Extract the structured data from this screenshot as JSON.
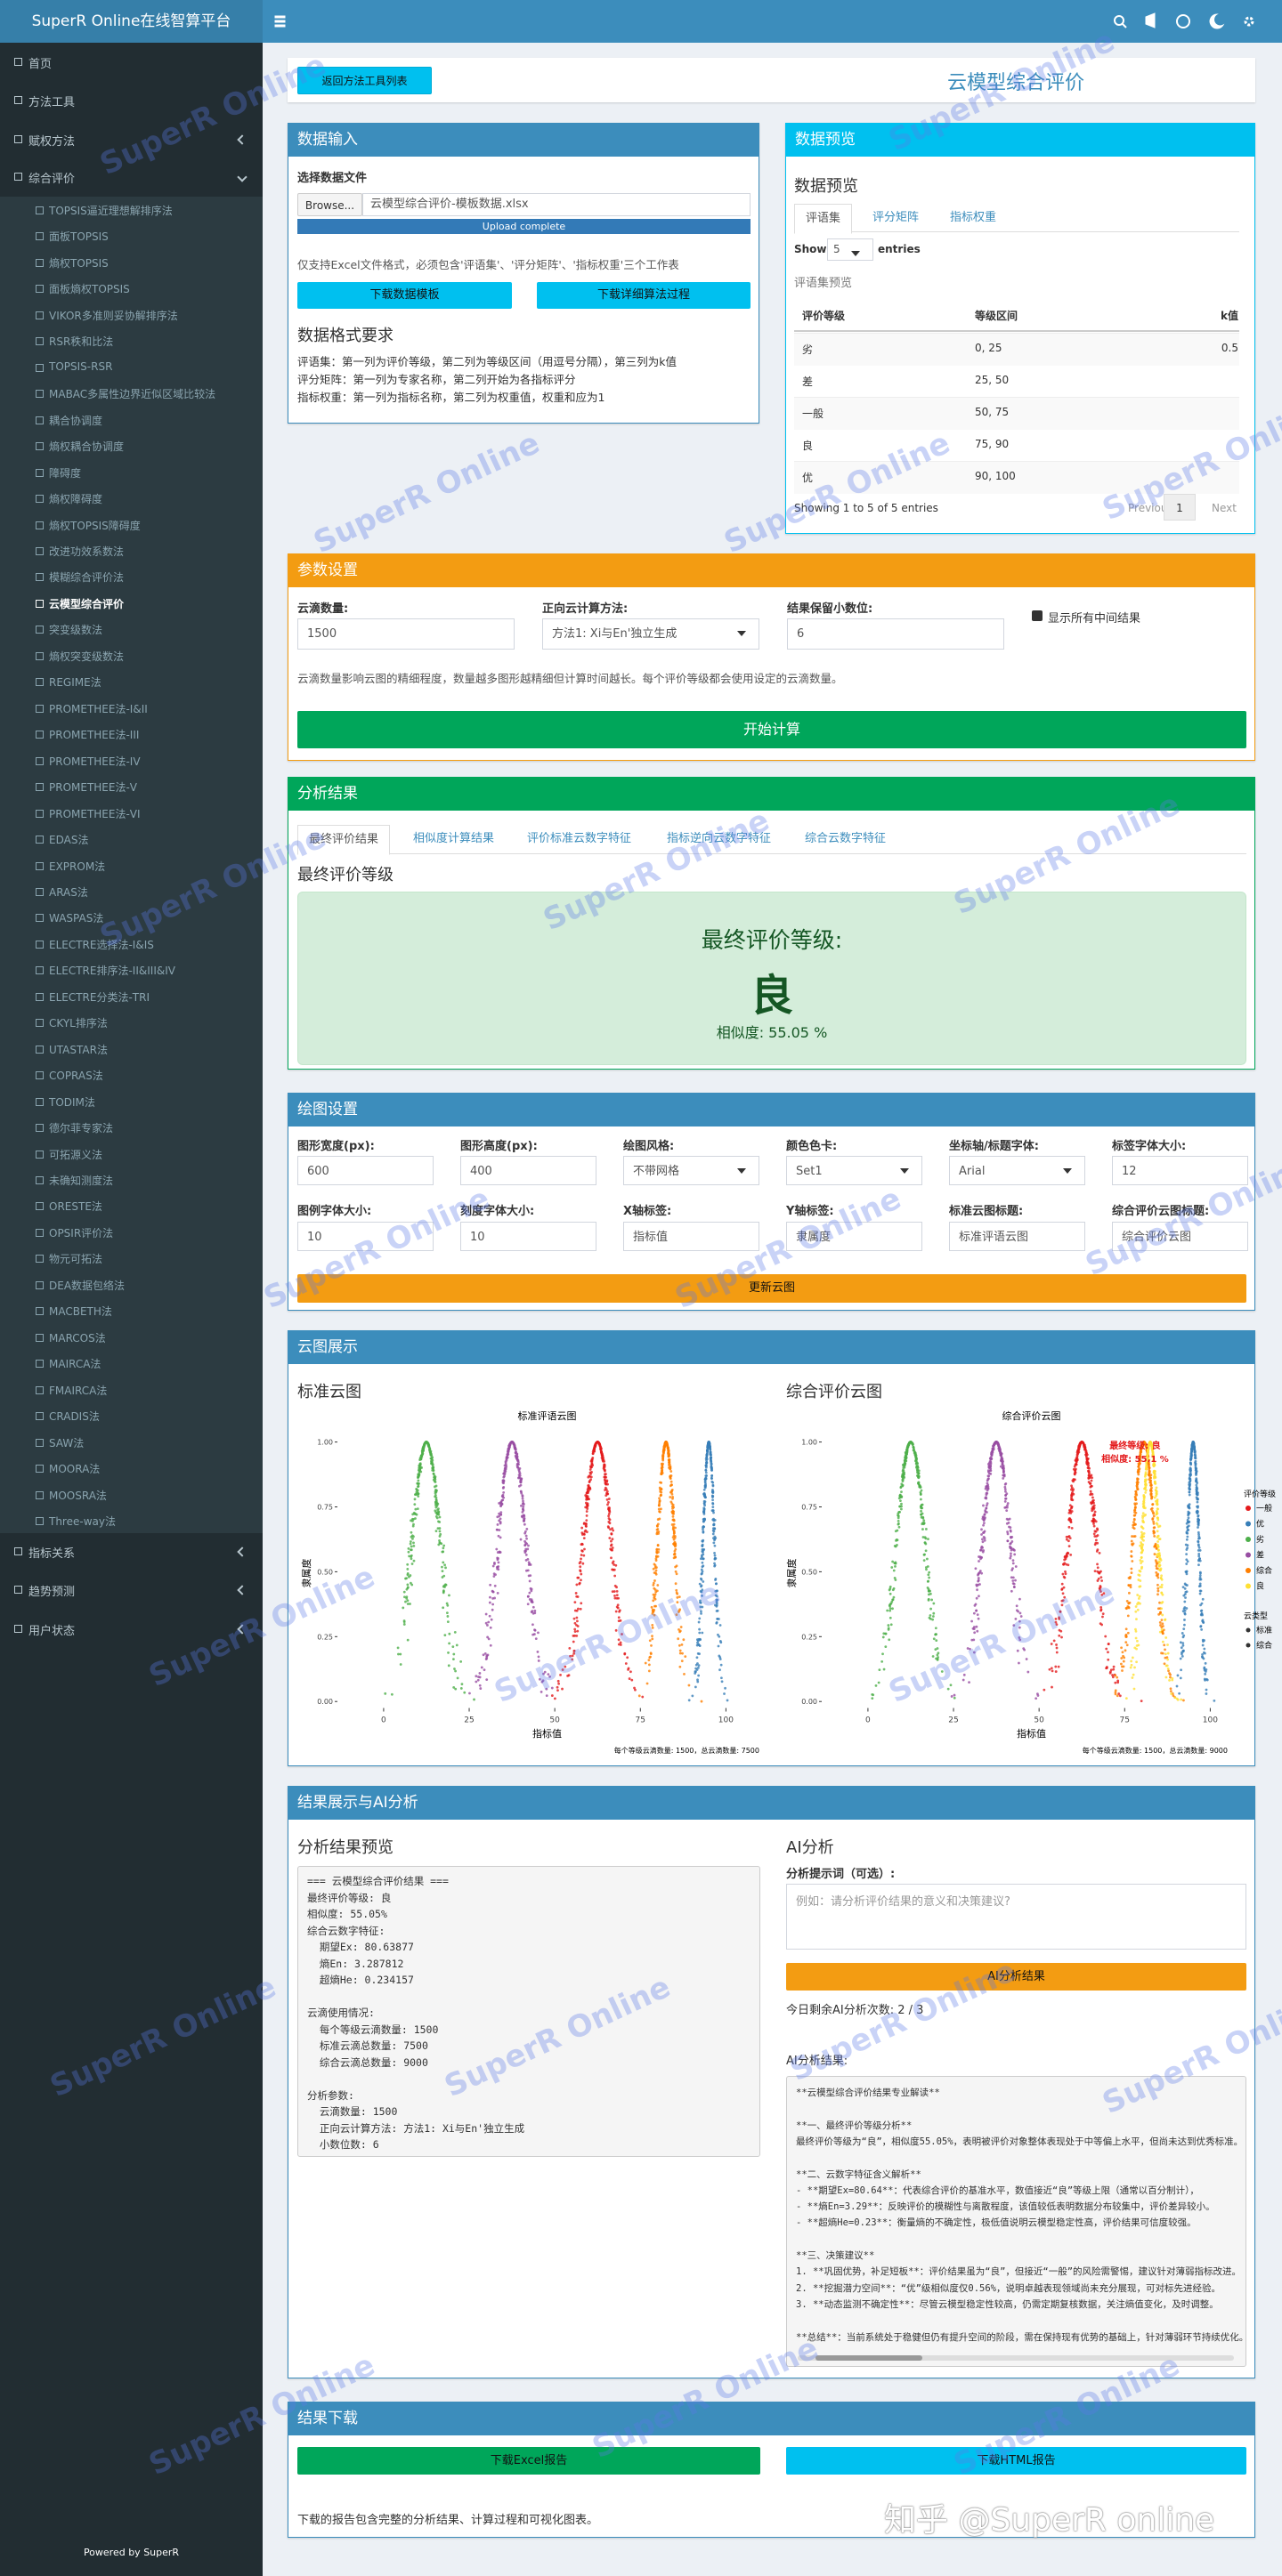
{
  "brand": "SuperR Online在线智算平台",
  "watermark": "SuperR Online",
  "zhihu": "知乎 @SuperR online",
  "sidebar": {
    "top": [
      "首页",
      "方法工具",
      "赋权方法",
      "综合评价"
    ],
    "methods": [
      "TOPSIS逼近理想解排序法",
      "面板TOPSIS",
      "熵权TOPSIS",
      "面板熵权TOPSIS",
      "VIKOR多准则妥协解排序法",
      "RSR秩和比法",
      "TOPSIS-RSR",
      "MABAC多属性边界近似区域比较法",
      "耦合协调度",
      "熵权耦合协调度",
      "障碍度",
      "熵权障碍度",
      "熵权TOPSIS障碍度",
      "改进功效系数法",
      "模糊综合评价法",
      "云模型综合评价",
      "突变级数法",
      "熵权突变级数法",
      "REGIME法",
      "PROMETHEE法-I&II",
      "PROMETHEE法-III",
      "PROMETHEE法-IV",
      "PROMETHEE法-V",
      "PROMETHEE法-VI",
      "EDAS法",
      "EXPROM法",
      "ARAS法",
      "WASPAS法",
      "ELECTRE选择法-I&IS",
      "ELECTRE排序法-II&III&IV",
      "ELECTRE分类法-TRI",
      "CKYL排序法",
      "UTASTAR法",
      "COPRAS法",
      "TODIM法",
      "德尔菲专家法",
      "可拓源义法",
      "未确知测度法",
      "ORESTE法",
      "OPSIR评价法",
      "物元可拓法",
      "DEA数据包络法",
      "MACBETH法",
      "MARCOS法",
      "MAIRCA法",
      "FMAIRCA法",
      "CRADIS法",
      "SAW法",
      "MOORA法",
      "MOOSRA法",
      "Three-way法"
    ],
    "active": 15,
    "bottom": [
      "指标关系",
      "趋势预测",
      "用户状态"
    ],
    "footer": "Powered by SuperR"
  },
  "header": {
    "back": "返回方法工具列表",
    "title": "云模型综合评价"
  },
  "input": {
    "title": "数据输入",
    "file_label": "选择数据文件",
    "browse": "Browse...",
    "file": "云模型综合评价-模板数据.xlsx",
    "progress": "Upload complete",
    "hint": "仅支持Excel文件格式，必须包含'评语集'、'评分矩阵'、'指标权重'三个工作表",
    "buttons": [
      "下载数据模板",
      "下载详细算法过程"
    ],
    "format_title": "数据格式要求",
    "format_lines": [
      "评语集：第一列为评价等级，第二列为等级区间（用逗号分隔），第三列为k值",
      "评分矩阵：第一列为专家名称，第二列开始为各指标评分",
      "指标权重：第一列为指标名称，第二列为权重值，权重和应为1"
    ]
  },
  "preview": {
    "title": "数据预览",
    "subtitle": "数据预览",
    "tabs": [
      "评语集",
      "评分矩阵",
      "指标权重"
    ],
    "show": "Show",
    "length": 5,
    "entries": "entries",
    "caption": "评语集预览",
    "columns": [
      "评价等级",
      "等级区间",
      "k值"
    ],
    "rows": [
      [
        "劣",
        "0, 25",
        0.5
      ],
      [
        "差",
        "25, 50"
      ],
      [
        "一般",
        "50, 75"
      ],
      [
        "良",
        "75, 90"
      ],
      [
        "优",
        "90, 100"
      ]
    ],
    "info": "Showing 1 to 5 of 5 entries",
    "prev": "Previous",
    "page": 1,
    "next": "Next"
  },
  "params": {
    "title": "参数设置",
    "fields": [
      {
        "label": "云滴数量:",
        "value": 1500
      },
      {
        "label": "正向云计算方法:",
        "value": "方法1: Xi与En'独立生成"
      },
      {
        "label": "结果保留小数位:",
        "value": 6
      }
    ],
    "checkbox": "显示所有中间结果",
    "note": "云滴数量影响云图的精细程度，数量越多图形越精细但计算时间越长。每个评价等级都会使用设定的云滴数量。",
    "button": "开始计算"
  },
  "results": {
    "title": "分析结果",
    "tabs": [
      "最终评价结果",
      "相似度计算结果",
      "评价标准云数字特征",
      "指标逆向云数字特征",
      "综合云数字特征"
    ],
    "heading": "最终评价等级",
    "label": "最终评价等级:",
    "grade": "良",
    "similarity": "相似度: 55.05 %"
  },
  "plot_settings": {
    "title": "绘图设置",
    "fields": [
      {
        "label": "图形宽度(px):",
        "value": 600
      },
      {
        "label": "图形高度(px):",
        "value": 400
      },
      {
        "label": "绘图风格:",
        "value": "不带网格"
      },
      {
        "label": "颜色色卡:",
        "value": "Set1"
      },
      {
        "label": "坐标轴/标题字体:",
        "value": "Arial"
      },
      {
        "label": "标签字体大小:",
        "value": 12
      },
      {
        "label": "图例字体大小:",
        "value": 10
      },
      {
        "label": "刻度字体大小:",
        "value": 10
      },
      {
        "label": "X轴标签:",
        "value": "指标值"
      },
      {
        "label": "Y轴标签:",
        "value": "隶属度"
      },
      {
        "label": "标准云图标题:",
        "value": "标准评语云图"
      },
      {
        "label": "综合评价云图标题:",
        "value": "综合评价云图"
      }
    ],
    "button": "更新云图"
  },
  "display": {
    "title": "云图展示",
    "left": "标准云图",
    "right": "综合评价云图"
  },
  "chart_data": [
    {
      "type": "scatter",
      "title": "标准评语云图",
      "xlabel": "指标值",
      "ylabel": "隶属度",
      "note": "每个等级云滴数量: 1500，总云滴数量: 7500",
      "xlim": [
        -13.5,
        109
      ],
      "ylim": [
        -0.025,
        1.05
      ],
      "xticks": [
        0,
        25,
        50,
        75,
        100
      ],
      "yticks": [
        {
          "value": 0,
          "label": "0.00"
        },
        {
          "value": 0.25,
          "label": "0.25"
        },
        {
          "value": 0.5,
          "label": "0.50"
        },
        {
          "value": 0.75,
          "label": "0.75"
        },
        {
          "value": 1,
          "label": "1.00"
        }
      ],
      "series": [
        {
          "color": "#e41a1c",
          "ex": 62.5,
          "en": 4.2,
          "he": 0.4
        },
        {
          "color": "#377eb8",
          "ex": 95,
          "en": 1.7,
          "he": 0.17
        },
        {
          "color": "#4daf4a",
          "ex": 12.5,
          "en": 4.2,
          "he": 0.4
        },
        {
          "color": "#984ea3",
          "ex": 37.5,
          "en": 4.2,
          "he": 0.4
        },
        {
          "color": "#ff7f00",
          "ex": 82.5,
          "en": 2.5,
          "he": 0.25
        }
      ]
    },
    {
      "type": "scatter",
      "title": "综合评价云图",
      "xlabel": "指标值",
      "ylabel": "隶属度",
      "note": "每个等级云滴数量: 1500，总云滴数量: 9000",
      "annotation": [
        "最终等级: 良",
        "相似度: 55.1 %"
      ],
      "xlim": [
        -13.5,
        109
      ],
      "ylim": [
        -0.025,
        1.05
      ],
      "xticks": [
        0,
        25,
        50,
        75,
        100
      ],
      "yticks": [
        {
          "value": 0,
          "label": "0.00"
        },
        {
          "value": 0.25,
          "label": "0.25"
        },
        {
          "value": 0.5,
          "label": "0.50"
        },
        {
          "value": 0.75,
          "label": "0.75"
        },
        {
          "value": 1,
          "label": "1.00"
        }
      ],
      "legend": {
        "title": "评价等级"
      },
      "legend2": {
        "title": "云类型",
        "items": [
          "标准",
          "综合"
        ]
      },
      "series": [
        {
          "name": "一般",
          "color": "#e41a1c",
          "ex": 62.5,
          "en": 4.2,
          "he": 0.4
        },
        {
          "name": "优",
          "color": "#377eb8",
          "ex": 95,
          "en": 1.7,
          "he": 0.17
        },
        {
          "name": "劣",
          "color": "#4daf4a",
          "ex": 12.5,
          "en": 4.2,
          "he": 0.4
        },
        {
          "name": "差",
          "color": "#984ea3",
          "ex": 37.5,
          "en": 4.2,
          "he": 0.4
        },
        {
          "name": "综合",
          "color": "#ff7f00",
          "ex": 80.63877,
          "en": 3.287812,
          "he": 0.234157
        },
        {
          "name": "良",
          "color": "#ffe033",
          "ex": 82.5,
          "en": 2.5,
          "he": 0.25
        }
      ]
    }
  ],
  "ai": {
    "title": "结果展示与AI分析",
    "preview_title": "分析结果预览",
    "preview_blocks": [
      [
        "=== 云模型综合评价结果 ===",
        "最终评价等级: 良",
        "相似度: 55.05%",
        "综合云数字特征:",
        "  期望Ex: 80.63877",
        "  熵En: 3.287812",
        "  超熵He: 0.234157"
      ],
      [
        "云滴使用情况:",
        "  每个等级云滴数量: 1500",
        "  标准云滴总数量: 7500",
        "  综合云滴总数量: 9000"
      ],
      [
        "分析参数:",
        "  云滴数量: 1500",
        "  正向云计算方法: 方法1: Xi与En'独立生成",
        "  小数位数: 6"
      ]
    ],
    "ai_title": "AI分析",
    "prompt_label": "分析提示词（可选）:",
    "placeholder": "例如：请分析评价结果的意义和决策建议?",
    "button": "AI分析结果",
    "remaining": "今日剩余AI分析次数: 2 / 3",
    "result_label": "AI分析结果:",
    "result_blocks": [
      [
        "**云模型综合评价结果专业解读**"
      ],
      [
        "**一、最终评价等级分析**",
        "最终评价等级为“良”，相似度55.05%，表明被评价对象整体表现处于中等偏上水平，但尚未达到优秀标准。"
      ],
      [
        "**二、云数字特征含义解析**",
        "- **期望Ex=80.64**：代表综合评价的基准水平，数值接近“良”等级上限（通常以百分制计），",
        "- **熵En=3.29**：反映评价的模糊性与离散程度，该值较低表明数据分布较集中，评价差异较小。",
        "- **超熵He=0.23**：衡量熵的不确定性，极低值说明云模型稳定性高，评价结果可信度较强。"
      ],
      [
        "**三、决策建议**",
        "1. **巩固优势，补足短板**：评价结果虽为“良”，但接近“一般”的风险需警惕，建议针对薄弱指标改进。",
        "2. **挖掘潜力空间**：“优”级相似度仅0.56%，说明卓越表现领域尚未充分展现，可对标先进经验。",
        "3. **动态监测不确定性**：尽管云模型稳定性较高，仍需定期复核数据，关注熵值变化，及时调整。"
      ],
      [
        "**总结**：当前系统处于稳健但仍有提升空间的阶段，需在保持现有优势的基础上，针对薄弱环节持续优化。"
      ]
    ]
  },
  "download": {
    "title": "结果下载",
    "buttons": [
      "下载Excel报告",
      "下载HTML报告"
    ],
    "note": "下载的报告包含完整的分析结果、计算过程和可视化图表。"
  }
}
